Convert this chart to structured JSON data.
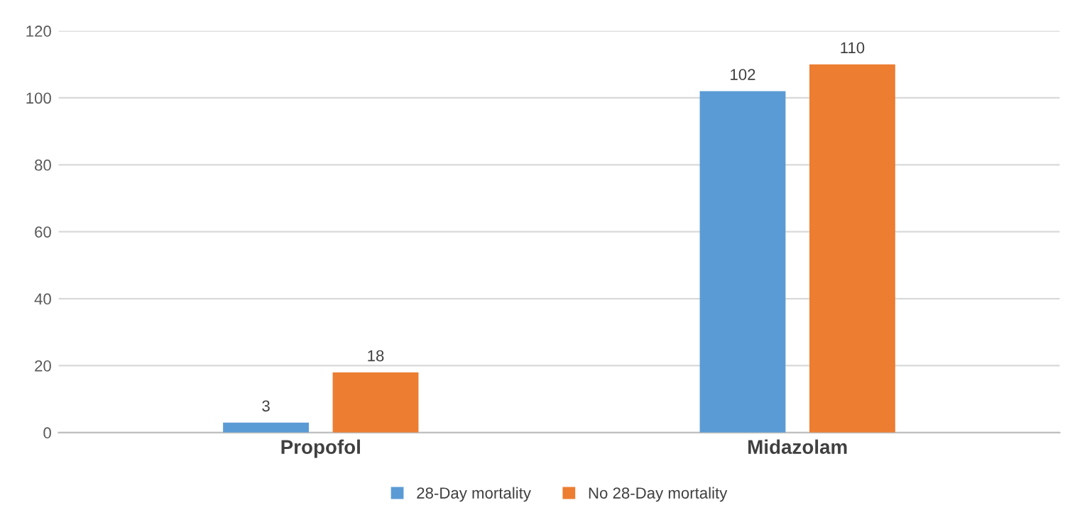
{
  "chart_data": {
    "type": "bar",
    "categories": [
      "Propofol",
      "Midazolam"
    ],
    "series": [
      {
        "name": "28-Day mortality",
        "color": "#5b9bd5",
        "values": [
          3,
          102
        ]
      },
      {
        "name": "No 28-Day mortality",
        "color": "#ed7d31",
        "values": [
          18,
          110
        ]
      }
    ],
    "ylim": [
      0,
      120
    ],
    "yticks": [
      0,
      20,
      40,
      60,
      80,
      100,
      120
    ],
    "grid": "y",
    "legend": "bottom",
    "data_labels": true
  }
}
